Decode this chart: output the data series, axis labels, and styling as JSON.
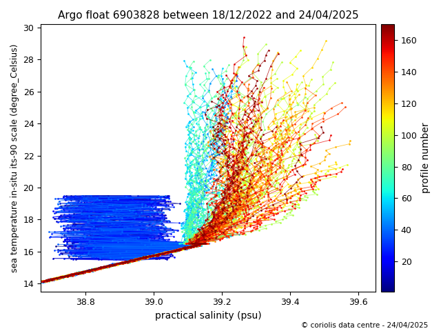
{
  "title": "Argo float 6903828 between 18/12/2022 and 24/04/2025",
  "xlabel": "practical salinity (psu)",
  "ylabel": "sea temperature in-situ its-90 scale (degree_Celsius)",
  "cbar_label": "profile number",
  "copyright": "© coriolis data centre - 24/04/2025",
  "xlim": [
    38.67,
    39.65
  ],
  "ylim": [
    13.5,
    30.2
  ],
  "xticks": [
    38.8,
    39.0,
    39.2,
    39.4,
    39.6
  ],
  "yticks": [
    14,
    16,
    18,
    20,
    22,
    24,
    26,
    28,
    30
  ],
  "cbar_ticks": [
    20,
    40,
    60,
    80,
    100,
    120,
    140,
    160
  ],
  "cbar_vmin": 1,
  "cbar_vmax": 170,
  "n_profiles": 170,
  "seed": 12345,
  "figsize": [
    6.4,
    4.8
  ],
  "dpi": 100
}
